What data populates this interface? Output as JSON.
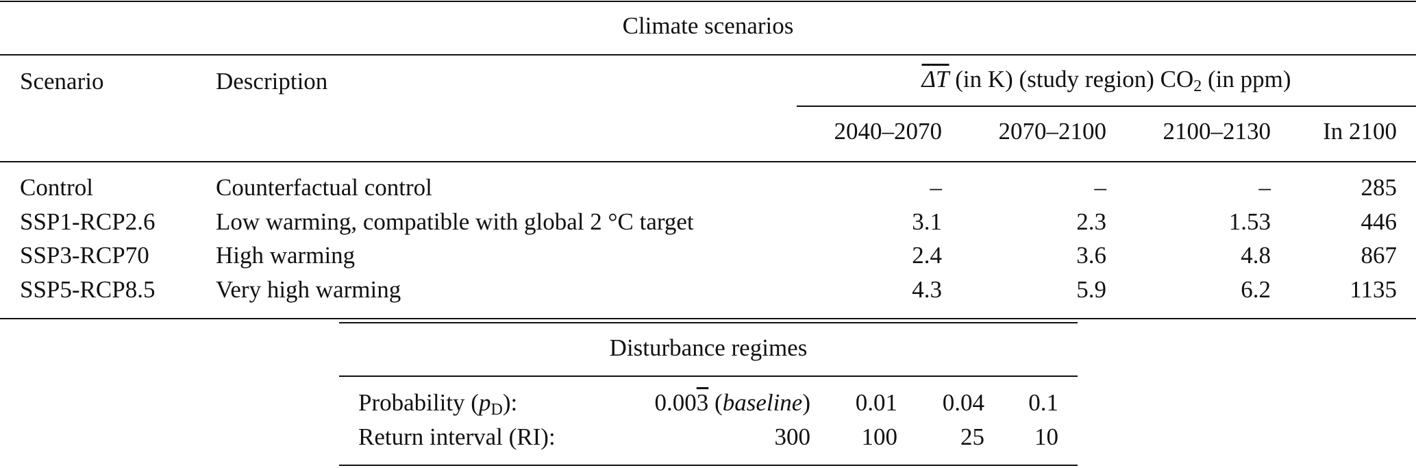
{
  "climate": {
    "title": "Climate scenarios",
    "col_scenario": "Scenario",
    "col_description": "Description",
    "group_header": {
      "dt_symbol": "ΔT",
      "dt_rest": " (in K) (study region) CO",
      "co2_sub": "2",
      "co2_rest": " (in ppm)"
    },
    "periods": [
      "2040–2070",
      "2070–2100",
      "2100–2130"
    ],
    "co2_col": "In 2100",
    "rows": [
      {
        "scenario": "Control",
        "description": "Counterfactual control",
        "t1": "–",
        "t2": "–",
        "t3": "–",
        "co2": "285"
      },
      {
        "scenario": "SSP1-RCP2.6",
        "description": "Low warming, compatible with global 2 °C target",
        "t1": "3.1",
        "t2": "2.3",
        "t3": "1.53",
        "co2": "446"
      },
      {
        "scenario": "SSP3-RCP70",
        "description": "High warming",
        "t1": "2.4",
        "t2": "3.6",
        "t3": "4.8",
        "co2": "867"
      },
      {
        "scenario": "SSP5-RCP8.5",
        "description": "Very high warming",
        "t1": "4.3",
        "t2": "5.9",
        "t3": "6.2",
        "co2": "1135"
      }
    ]
  },
  "disturbance": {
    "title": "Disturbance regimes",
    "prob_label_pre": "Probability (",
    "prob_label_p": "p",
    "prob_label_sub": "D",
    "prob_label_post": "):",
    "baseline_value_pre": "0.00",
    "baseline_value_bar": "3",
    "baseline_note": "baseline",
    "probabilities": [
      "0.01",
      "0.04",
      "0.1"
    ],
    "ri_label": "Return interval (RI):",
    "return_intervals": [
      "300",
      "100",
      "25",
      "10"
    ]
  }
}
